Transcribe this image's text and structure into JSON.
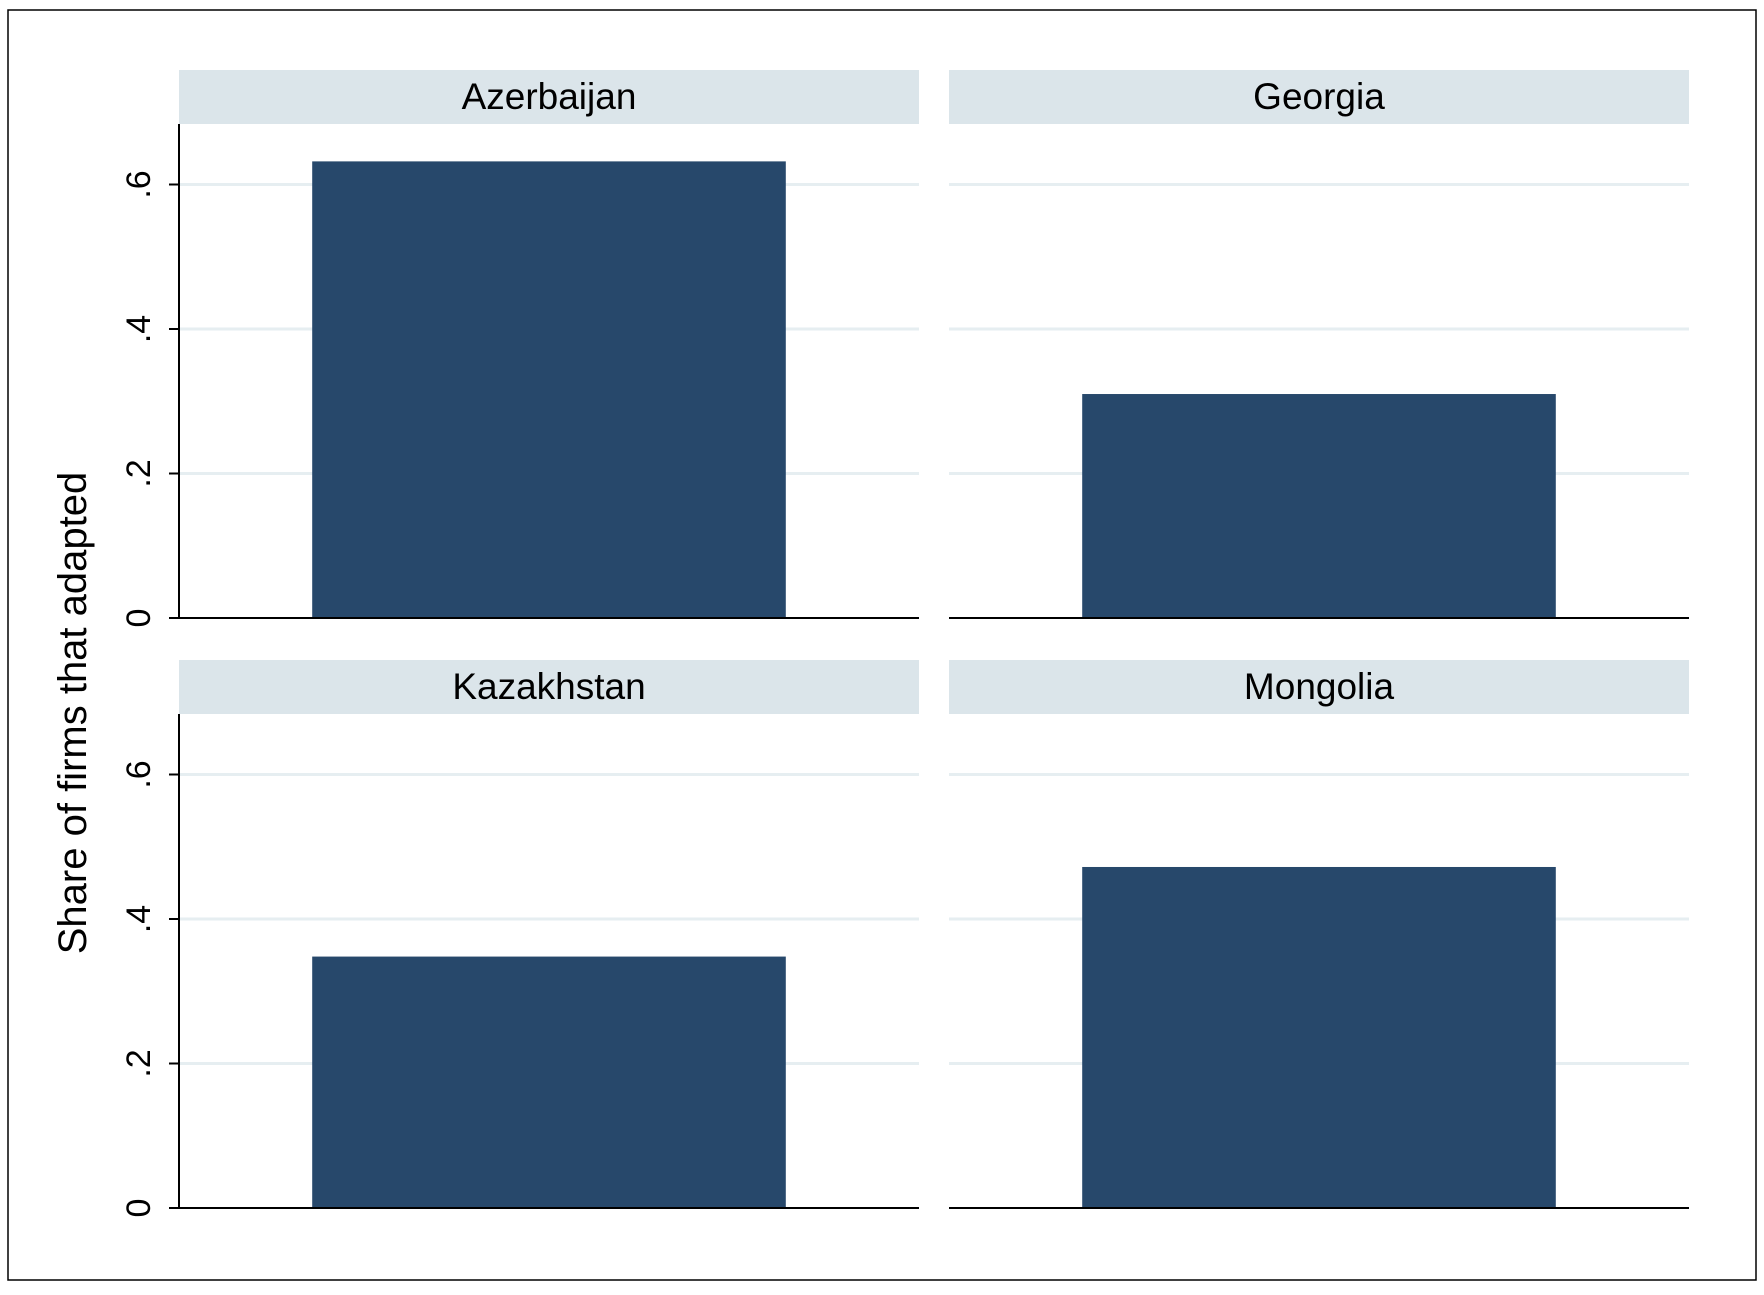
{
  "chart_data": {
    "type": "bar",
    "layout": "2x2 small multiples",
    "ylabel": "Share of firms that adapted",
    "ylim": [
      0,
      0.68
    ],
    "yticks": [
      0,
      0.2,
      0.4,
      0.6
    ],
    "ytick_labels": [
      "0",
      ".2",
      ".4",
      ".6"
    ],
    "grid": true,
    "colors": {
      "bar": "#27486b",
      "panel_header": "#dbe5ea",
      "gridline": "#e6eef1",
      "axis": "#000000"
    },
    "panels": [
      {
        "title": "Azerbaijan",
        "value": 0.632
      },
      {
        "title": "Georgia",
        "value": 0.31
      },
      {
        "title": "Kazakhstan",
        "value": 0.348
      },
      {
        "title": "Mongolia",
        "value": 0.472
      }
    ]
  }
}
